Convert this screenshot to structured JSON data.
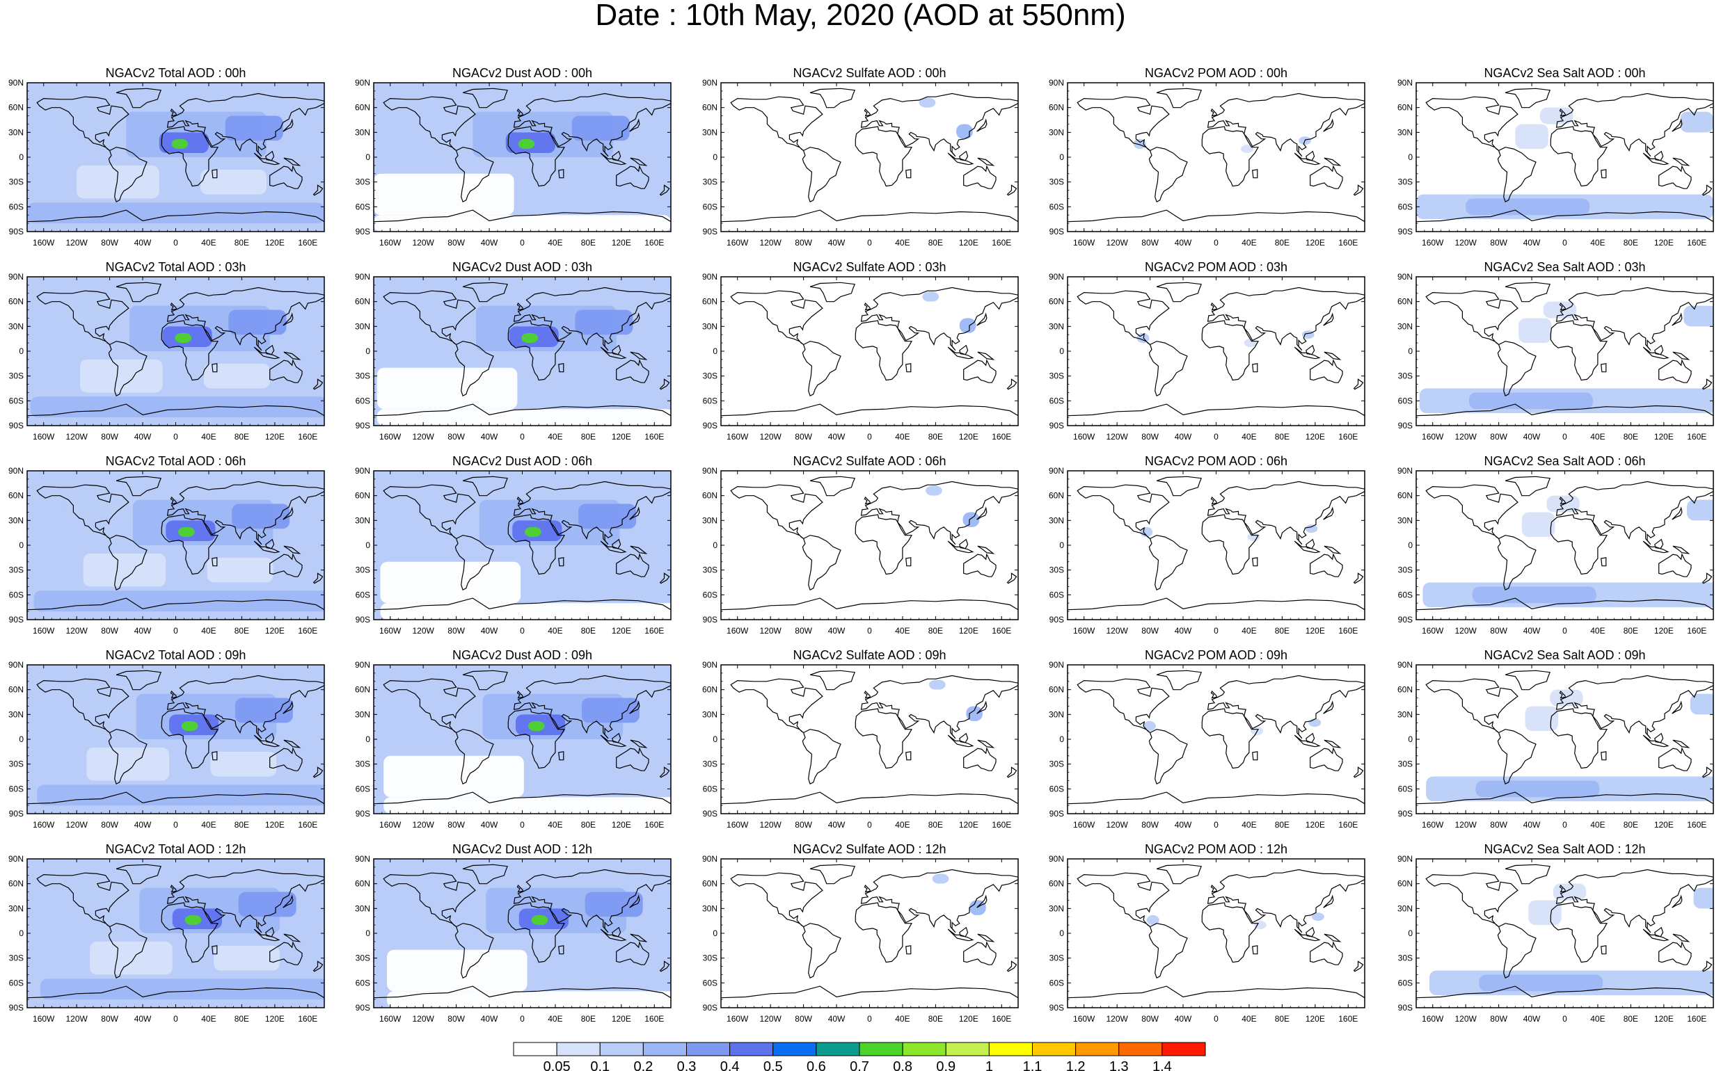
{
  "title": "Date : 10th May, 2020 (AOD at 550nm)",
  "chart_data": {
    "type": "heatmap",
    "layout": "small-multiples map grid, 5 rows (forecast hour) x 5 columns (aerosol species)",
    "projection": "cylindrical equidistant",
    "xaxis": {
      "ticks": [
        "160W",
        "120W",
        "80W",
        "40W",
        "0",
        "40E",
        "80E",
        "120E",
        "160E"
      ],
      "range_deg": [
        -180,
        180
      ]
    },
    "yaxis": {
      "ticks": [
        "90N",
        "60N",
        "30N",
        "0",
        "30S",
        "60S",
        "90S"
      ],
      "range_deg": [
        -90,
        90
      ]
    },
    "rows": [
      "00h",
      "03h",
      "06h",
      "09h",
      "12h"
    ],
    "columns": [
      "Total",
      "Dust",
      "Sulfate",
      "POM",
      "Sea Salt"
    ],
    "panels": [
      [
        {
          "title": "NGACv2 Total AOD : 00h",
          "variable": "Total"
        },
        {
          "title": "NGACv2 Dust AOD : 00h",
          "variable": "Dust"
        },
        {
          "title": "NGACv2 Sulfate AOD : 00h",
          "variable": "Sulfate"
        },
        {
          "title": "NGACv2 POM AOD : 00h",
          "variable": "POM"
        },
        {
          "title": "NGACv2 Sea Salt AOD : 00h",
          "variable": "Sea Salt"
        }
      ],
      [
        {
          "title": "NGACv2 Total AOD : 03h",
          "variable": "Total"
        },
        {
          "title": "NGACv2 Dust AOD : 03h",
          "variable": "Dust"
        },
        {
          "title": "NGACv2 Sulfate AOD : 03h",
          "variable": "Sulfate"
        },
        {
          "title": "NGACv2 POM AOD : 03h",
          "variable": "POM"
        },
        {
          "title": "NGACv2 Sea Salt AOD : 03h",
          "variable": "Sea Salt"
        }
      ],
      [
        {
          "title": "NGACv2 Total AOD : 06h",
          "variable": "Total"
        },
        {
          "title": "NGACv2 Dust AOD : 06h",
          "variable": "Dust"
        },
        {
          "title": "NGACv2 Sulfate AOD : 06h",
          "variable": "Sulfate"
        },
        {
          "title": "NGACv2 POM AOD : 06h",
          "variable": "POM"
        },
        {
          "title": "NGACv2 Sea Salt AOD : 06h",
          "variable": "Sea Salt"
        }
      ],
      [
        {
          "title": "NGACv2 Total AOD : 09h",
          "variable": "Total"
        },
        {
          "title": "NGACv2 Dust AOD : 09h",
          "variable": "Dust"
        },
        {
          "title": "NGACv2 Sulfate AOD : 09h",
          "variable": "Sulfate"
        },
        {
          "title": "NGACv2 POM AOD : 09h",
          "variable": "POM"
        },
        {
          "title": "NGACv2 Sea Salt  AOD : 09h",
          "variable": "Sea Salt"
        }
      ],
      [
        {
          "title": "NGACv2 Total AOD  : 12h",
          "variable": "Total"
        },
        {
          "title": "NGACv2 Dust AOD : 12h",
          "variable": "Dust"
        },
        {
          "title": "NGACv2 Sulfate AOD : 12h",
          "variable": "Sulfate"
        },
        {
          "title": "NGACv2 POM  AOD : 12h",
          "variable": "POM"
        },
        {
          "title": "NGACv2 Sea Salt AOD : 12h",
          "variable": "Sea Salt"
        }
      ]
    ],
    "colorbar": {
      "labels": [
        "0.05",
        "0.1",
        "0.2",
        "0.3",
        "0.4",
        "0.5",
        "0.6",
        "0.7",
        "0.8",
        "0.9",
        "1",
        "1.1",
        "1.2",
        "1.3",
        "1.4"
      ],
      "colors": [
        "#ffffff",
        "#d6e2fa",
        "#b9cdf8",
        "#9cb7f5",
        "#7d99f2",
        "#5f72ee",
        "#0a6ef2",
        "#0e9b8f",
        "#4cd42a",
        "#8ce629",
        "#c4f051",
        "#ffff00",
        "#ffc800",
        "#ff9a00",
        "#ff6a00",
        "#ff1a00"
      ]
    },
    "species_features": {
      "Total": {
        "background": 0.1,
        "regions": [
          {
            "lon": [
              -60,
              110
            ],
            "lat": [
              0,
              55
            ],
            "value": 0.25
          },
          {
            "lon": [
              -20,
              40
            ],
            "lat": [
              5,
              30
            ],
            "value": 0.45
          },
          {
            "lon": [
              -5,
              15
            ],
            "lat": [
              10,
              22
            ],
            "value": 0.7
          },
          {
            "lon": [
              -180,
              180
            ],
            "lat": [
              -80,
              -55
            ],
            "value": 0.2
          },
          {
            "lon": [
              60,
              130
            ],
            "lat": [
              20,
              50
            ],
            "value": 0.3
          },
          {
            "lon": [
              -140,
              -60
            ],
            "lat": [
              35,
              65
            ],
            "value": 0.15
          },
          {
            "lon": [
              -120,
              -20
            ],
            "lat": [
              -50,
              -10
            ],
            "value": 0.06
          },
          {
            "lon": [
              30,
              110
            ],
            "lat": [
              -45,
              -15
            ],
            "value": 0.06
          }
        ]
      },
      "Dust": {
        "background": 0.1,
        "regions": [
          {
            "lon": [
              -60,
              110
            ],
            "lat": [
              0,
              55
            ],
            "value": 0.25
          },
          {
            "lon": [
              -20,
              40
            ],
            "lat": [
              5,
              30
            ],
            "value": 0.45
          },
          {
            "lon": [
              -5,
              15
            ],
            "lat": [
              10,
              22
            ],
            "value": 0.7
          },
          {
            "lon": [
              60,
              130
            ],
            "lat": [
              20,
              50
            ],
            "value": 0.3
          },
          {
            "lon": [
              -180,
              180
            ],
            "lat": [
              -90,
              -70
            ],
            "value": 0.02
          },
          {
            "lon": [
              -180,
              -10
            ],
            "lat": [
              -70,
              -20
            ],
            "value": 0.02
          }
        ]
      },
      "Sulfate": {
        "background": 0.0,
        "regions": [
          {
            "lon": [
              105,
              125
            ],
            "lat": [
              22,
              40
            ],
            "value": 0.2
          },
          {
            "lon": [
              60,
              80
            ],
            "lat": [
              60,
              72
            ],
            "value": 0.12
          }
        ]
      },
      "POM": {
        "background": 0.0,
        "regions": [
          {
            "lon": [
              -100,
              -85
            ],
            "lat": [
              10,
              22
            ],
            "value": 0.15
          },
          {
            "lon": [
              100,
              115
            ],
            "lat": [
              15,
              25
            ],
            "value": 0.12
          },
          {
            "lon": [
              30,
              45
            ],
            "lat": [
              5,
              15
            ],
            "value": 0.08
          }
        ]
      },
      "Sea Salt": {
        "background": 0.0,
        "regions": [
          {
            "lon": [
              -180,
              180
            ],
            "lat": [
              -75,
              -45
            ],
            "value": 0.15
          },
          {
            "lon": [
              -120,
              30
            ],
            "lat": [
              -70,
              -50
            ],
            "value": 0.25
          },
          {
            "lon": [
              -60,
              -20
            ],
            "lat": [
              10,
              40
            ],
            "value": 0.08
          },
          {
            "lon": [
              140,
              180
            ],
            "lat": [
              30,
              55
            ],
            "value": 0.1
          },
          {
            "lon": [
              -30,
              10
            ],
            "lat": [
              40,
              60
            ],
            "value": 0.08
          }
        ]
      }
    }
  }
}
